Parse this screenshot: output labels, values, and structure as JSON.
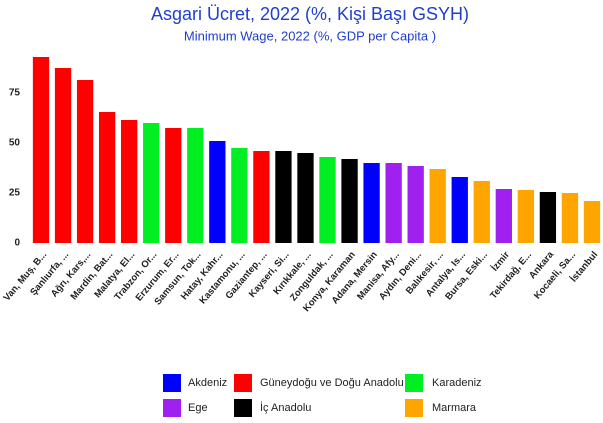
{
  "chart_data": {
    "type": "bar",
    "title": "Asgari Ücret, 2022 (%, Kişi Başı GSYH)",
    "subtitle": "Minimum Wage, 2022 (%, GDP per Capita )",
    "categories": [
      "Van, Muş, B...",
      "Şanlıurfa, ...",
      "Ağrı, Kars,...",
      "Mardin, Bat...",
      "Malatya, El...",
      "Trabzon, Or...",
      "Erzurum, Er...",
      "Samsun, Tok...",
      "Hatay, Kahr...",
      "Kastamonu, ...",
      "Gaziantep, ...",
      "Kayseri, Si...",
      "Kırıkkale, ...",
      "Zonguldak, ...",
      "Konya, Karaman",
      "Adana, Mersin",
      "Manisa, Afy...",
      "Aydın, Deni...",
      "Balıkesir, ...",
      "Antalya, Is...",
      "Bursa, Eski...",
      "İzmir",
      "Tekirdağ, E...",
      "Ankara",
      "Kocaeli, Sa...",
      "İstanbul"
    ],
    "values": [
      93,
      87.5,
      81.5,
      65.5,
      61.5,
      60,
      57.5,
      57.5,
      51,
      47.5,
      46,
      46,
      45,
      43,
      42,
      40,
      40,
      38.5,
      37,
      33,
      31,
      27,
      26.5,
      25.5,
      25,
      21
    ],
    "colors": [
      "#ff0000",
      "#ff0000",
      "#ff0000",
      "#ff0000",
      "#ff0000",
      "#00ee22",
      "#ff0000",
      "#00ee22",
      "#0000ff",
      "#00ee22",
      "#ff0000",
      "#000000",
      "#000000",
      "#00ee22",
      "#000000",
      "#0000ff",
      "#a020f0",
      "#a020f0",
      "#ffa500",
      "#0000ff",
      "#ffa500",
      "#a020f0",
      "#ffa500",
      "#000000",
      "#ffa500",
      "#ffa500"
    ],
    "legend": [
      {
        "name": "Akdeniz",
        "color": "#0000ff"
      },
      {
        "name": "Güneydoğu ve Doğu Anadolu",
        "color": "#ff0000"
      },
      {
        "name": "Karadeniz",
        "color": "#00ee22"
      },
      {
        "name": "Ege",
        "color": "#a020f0"
      },
      {
        "name": "İç Anadolu",
        "color": "#000000"
      },
      {
        "name": "Marmara",
        "color": "#ffa500"
      }
    ],
    "ylim": [
      0,
      95
    ],
    "yticks": [
      0,
      25,
      50,
      75
    ],
    "grid": false
  }
}
